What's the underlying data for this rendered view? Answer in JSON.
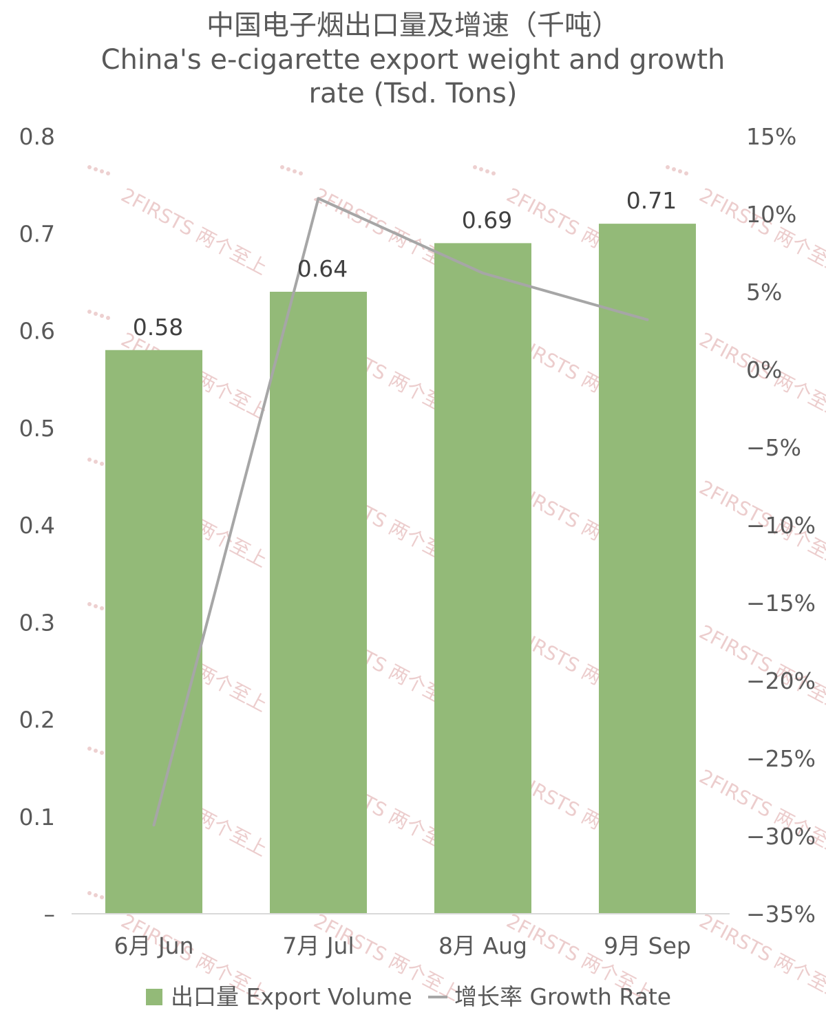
{
  "chart_data": {
    "type": "bar+line",
    "title_cn": "中国电子烟出口量及增速（千吨）",
    "title_en_line1": "China's e-cigarette export weight and growth",
    "title_en_line2": "rate (Tsd. Tons)",
    "categories": [
      "6月 Jun",
      "7月 Jul",
      "8月 Aug",
      "9月 Sep"
    ],
    "series": [
      {
        "name": "出口量 Export Volume",
        "type": "bar",
        "axis": "left",
        "values": [
          0.58,
          0.64,
          0.69,
          0.71
        ],
        "data_labels": [
          "0.58",
          "0.64",
          "0.69",
          "0.71"
        ],
        "color": "#93BA78"
      },
      {
        "name": "增长率 Growth Rate",
        "type": "line",
        "axis": "right",
        "values": [
          -29.3,
          11.0,
          6.2,
          3.2
        ],
        "color": "#A6A6A6"
      }
    ],
    "y_left": {
      "ylim": [
        0,
        0.8
      ],
      "ticks": [
        0,
        0.1,
        0.2,
        0.3,
        0.4,
        0.5,
        0.6,
        0.7,
        0.8
      ],
      "tick_labels": [
        "–",
        "0.1",
        "0.2",
        "0.3",
        "0.4",
        "0.5",
        "0.6",
        "0.7",
        "0.8"
      ]
    },
    "y_right": {
      "ylim": [
        -35,
        15
      ],
      "ticks": [
        -35,
        -30,
        -25,
        -20,
        -15,
        -10,
        -5,
        0,
        5,
        10,
        15
      ],
      "tick_labels": [
        "−35%",
        "−30%",
        "−25%",
        "−20%",
        "−15%",
        "−10%",
        "−5%",
        "0%",
        "5%",
        "10%",
        "15%"
      ]
    },
    "grid": false,
    "legend_position": "bottom",
    "watermark": "2FIRSTS 两个至上"
  }
}
